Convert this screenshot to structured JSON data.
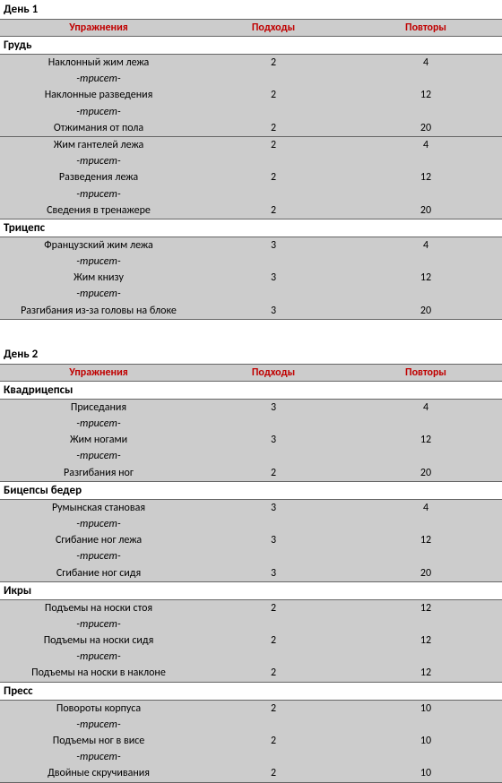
{
  "colors": {
    "header_text": "#c00000",
    "row_bg": "#cccccc",
    "border": "#666666",
    "text": "#000000",
    "bg": "#ffffff"
  },
  "columns": {
    "exercise": "Упражнения",
    "sets": "Подходы",
    "reps": "Повторы"
  },
  "triset_label": "-трисет-",
  "days": [
    {
      "title": "День 1",
      "groups": [
        {
          "name": "Грудь",
          "rows": [
            {
              "ex": "Наклонный жим лежа",
              "sets": "2",
              "reps": "4",
              "triset_after": true
            },
            {
              "ex": "Наклонные разведения",
              "sets": "2",
              "reps": "12",
              "triset_after": true
            },
            {
              "ex": "Отжимания от пола",
              "sets": "2",
              "reps": "20",
              "sep": true
            },
            {
              "ex": "Жим гантелей лежа",
              "sets": "2",
              "reps": "4",
              "triset_after": true
            },
            {
              "ex": "Разведения лежа",
              "sets": "2",
              "reps": "12",
              "triset_after": true
            },
            {
              "ex": "Сведения в тренажере",
              "sets": "2",
              "reps": "20",
              "sep": true
            }
          ]
        },
        {
          "name": "Трицепс",
          "rows": [
            {
              "ex": "Французский жим лежа",
              "sets": "3",
              "reps": "4",
              "triset_after": true
            },
            {
              "ex": "Жим книзу",
              "sets": "3",
              "reps": "12",
              "triset_after": true
            },
            {
              "ex": "Разгибания из-за головы на блоке",
              "sets": "3",
              "reps": "20",
              "sep": true
            }
          ]
        }
      ]
    },
    {
      "title": "День 2",
      "groups": [
        {
          "name": "Квадрицепсы",
          "rows": [
            {
              "ex": "Приседания",
              "sets": "3",
              "reps": "4",
              "triset_after": true
            },
            {
              "ex": "Жим ногами",
              "sets": "3",
              "reps": "12",
              "triset_after": true
            },
            {
              "ex": "Разгибания ног",
              "sets": "2",
              "reps": "20",
              "sep": true
            }
          ]
        },
        {
          "name": "Бицепсы бедер",
          "rows": [
            {
              "ex": "Румынская становая",
              "sets": "3",
              "reps": "4",
              "triset_after": true
            },
            {
              "ex": "Сгибание ног лежа",
              "sets": "3",
              "reps": "12",
              "triset_after": true
            },
            {
              "ex": "Сгибание ног сидя",
              "sets": "3",
              "reps": "20",
              "sep": true
            }
          ]
        },
        {
          "name": "Икры",
          "rows": [
            {
              "ex": "Подъемы на носки стоя",
              "sets": "2",
              "reps": "12",
              "triset_after": true
            },
            {
              "ex": "Подъемы на носки сидя",
              "sets": "2",
              "reps": "12",
              "triset_after": true
            },
            {
              "ex": "Подъемы на носки в наклоне",
              "sets": "2",
              "reps": "12",
              "sep": true
            }
          ]
        },
        {
          "name": "Пресс",
          "rows": [
            {
              "ex": "Повороты корпуса",
              "sets": "2",
              "reps": "10",
              "triset_after": true
            },
            {
              "ex": "Подъемы ног в висе",
              "sets": "2",
              "reps": "10",
              "triset_after": true
            },
            {
              "ex": "Двойные скручивания",
              "sets": "2",
              "reps": "10",
              "sep": true
            }
          ]
        }
      ]
    }
  ]
}
